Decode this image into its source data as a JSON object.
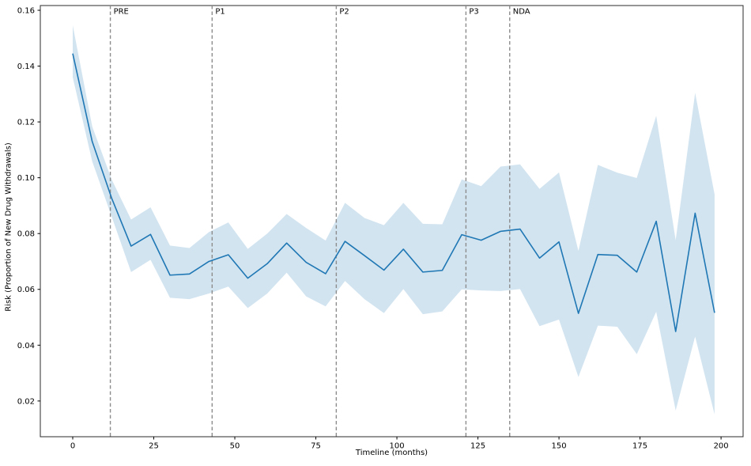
{
  "chart_data": {
    "type": "line",
    "title": "",
    "xlabel": "Timeline (months)",
    "ylabel": "Risk (Proportion of New Drug Withdrawals)",
    "x": [
      0,
      6,
      12,
      18,
      24,
      30,
      36,
      42,
      48,
      54,
      60,
      66,
      72,
      78,
      84,
      90,
      96,
      102,
      108,
      114,
      120,
      126,
      132,
      138,
      144,
      150,
      156,
      162,
      168,
      174,
      180,
      186,
      192,
      198
    ],
    "series": [
      {
        "name": "Risk (Proportion of New Drug Withdrawals)",
        "color": "#1f77b4",
        "values": [
          0.1445,
          0.113,
          0.0927,
          0.0755,
          0.0797,
          0.0651,
          0.0655,
          0.07,
          0.0724,
          0.064,
          0.0692,
          0.0766,
          0.0697,
          0.0656,
          0.0772,
          0.0721,
          0.0669,
          0.0744,
          0.0662,
          0.0668,
          0.0796,
          0.0776,
          0.0808,
          0.0816,
          0.0712,
          0.077,
          0.0514,
          0.0725,
          0.0722,
          0.0662,
          0.0844,
          0.0449,
          0.0873,
          0.0516
        ]
      }
    ],
    "band": {
      "name": "confidence-interval",
      "fill": "#1f77b4",
      "opacity": 0.2,
      "upper": [
        0.1546,
        0.1184,
        0.0994,
        0.085,
        0.0894,
        0.0757,
        0.0748,
        0.0805,
        0.084,
        0.0745,
        0.08,
        0.087,
        0.082,
        0.0775,
        0.091,
        0.0856,
        0.083,
        0.091,
        0.0835,
        0.0833,
        0.0994,
        0.097,
        0.104,
        0.1048,
        0.096,
        0.1019,
        0.0738,
        0.1046,
        0.1018,
        0.0999,
        0.1222,
        0.0776,
        0.1304,
        0.0941
      ],
      "lower": [
        0.136,
        0.1059,
        0.0861,
        0.0662,
        0.0706,
        0.057,
        0.0565,
        0.0585,
        0.061,
        0.0533,
        0.0585,
        0.066,
        0.0575,
        0.0539,
        0.063,
        0.0565,
        0.0515,
        0.0601,
        0.0511,
        0.0521,
        0.06,
        0.0596,
        0.0594,
        0.0601,
        0.0468,
        0.0492,
        0.0286,
        0.047,
        0.0466,
        0.0368,
        0.052,
        0.0166,
        0.0431,
        0.0152
      ]
    },
    "milestones": [
      {
        "label": "PRE",
        "month": 11.6
      },
      {
        "label": "P1",
        "month": 43.0
      },
      {
        "label": "P2",
        "month": 81.3
      },
      {
        "label": "P3",
        "month": 121.3
      },
      {
        "label": "NDA",
        "month": 134.8
      }
    ],
    "milestone_line_color": "#8c8c8c",
    "x_ticks": [
      {
        "v": 0,
        "label": "0"
      },
      {
        "v": 25,
        "label": "25"
      },
      {
        "v": 50,
        "label": "50"
      },
      {
        "v": 75,
        "label": "75"
      },
      {
        "v": 100,
        "label": "100"
      },
      {
        "v": 125,
        "label": "125"
      },
      {
        "v": 150,
        "label": "150"
      },
      {
        "v": 175,
        "label": "175"
      },
      {
        "v": 200,
        "label": "200"
      }
    ],
    "y_ticks": [
      {
        "v": 0.02,
        "label": "0.02"
      },
      {
        "v": 0.04,
        "label": "0.04"
      },
      {
        "v": 0.06,
        "label": "0.06"
      },
      {
        "v": 0.08,
        "label": "0.08"
      },
      {
        "v": 0.1,
        "label": "0.10"
      },
      {
        "v": 0.12,
        "label": "0.12"
      },
      {
        "v": 0.14,
        "label": "0.14"
      },
      {
        "v": 0.16,
        "label": "0.16"
      }
    ],
    "xlim": [
      -10,
      206.8
    ],
    "ylim": [
      0.0072,
      0.1617
    ],
    "grid": false,
    "legend": "none",
    "spine_color": "#2b2b2b",
    "tick_color": "#000000"
  }
}
